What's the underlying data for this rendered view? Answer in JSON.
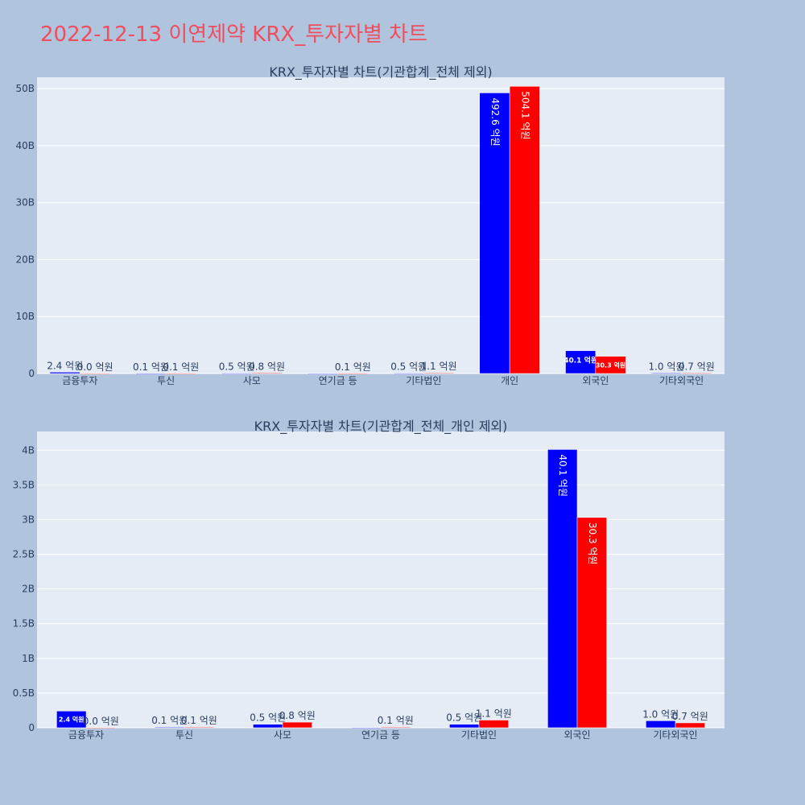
{
  "page": {
    "title": "2022-12-13 이연제약 KRX_투자자별 차트"
  },
  "colors": {
    "background": "#b0c4de",
    "plot_background": "#e5ecf6",
    "title": "#ef4e5f",
    "series_a": "#0000ff",
    "series_b": "#ff0000",
    "text": "#2a3f5f"
  },
  "chart_data": [
    {
      "type": "bar",
      "title": "KRX_투자자별 차트(기관합계_전체 제외)",
      "categories": [
        "금융투자",
        "투신",
        "사모",
        "연기금 등",
        "기타법인",
        "개인",
        "외국인",
        "기타외국인"
      ],
      "series": [
        {
          "color": "#0000ff",
          "values": [
            240000000,
            10000000,
            50000000,
            0,
            50000000,
            49260000000,
            4010000000,
            100000000
          ],
          "labels": [
            "2.4 억원",
            "0.1 억원",
            "0.5 억원",
            "",
            "0.5 억원",
            "492.6 억원",
            "40.1 억원",
            "1.0 억원"
          ]
        },
        {
          "color": "#ff0000",
          "values": [
            0,
            10000000,
            80000000,
            10000000,
            110000000,
            50410000000,
            3030000000,
            70000000
          ],
          "labels": [
            "0.0 억원",
            "0.1 억원",
            "0.8 억원",
            "0.1 억원",
            "1.1 억원",
            "504.1 억원",
            "30.3 억원",
            "0.7 억원"
          ]
        }
      ],
      "ylim": [
        0,
        52000000000
      ],
      "yticks": [
        0,
        10000000000,
        20000000000,
        30000000000,
        40000000000,
        50000000000
      ],
      "yticklabels": [
        "0",
        "10B",
        "20B",
        "30B",
        "40B",
        "50B"
      ],
      "grid": true,
      "legend": "none"
    },
    {
      "type": "bar",
      "title": "KRX_투자자별 차트(기관합계_전체_개인 제외)",
      "categories": [
        "금융투자",
        "투신",
        "사모",
        "연기금 등",
        "기타법인",
        "외국인",
        "기타외국인"
      ],
      "series": [
        {
          "color": "#0000ff",
          "values": [
            240000000,
            10000000,
            50000000,
            0,
            50000000,
            4010000000,
            100000000
          ],
          "labels": [
            "2.4 억원",
            "0.1 억원",
            "0.5 억원",
            "",
            "0.5 억원",
            "40.1 억원",
            "1.0 억원"
          ]
        },
        {
          "color": "#ff0000",
          "values": [
            0,
            10000000,
            80000000,
            10000000,
            110000000,
            3030000000,
            70000000
          ],
          "labels": [
            "0.0 억원",
            "0.1 억원",
            "0.8 억원",
            "0.1 억원",
            "1.1 억원",
            "30.3 억원",
            "0.7 억원"
          ]
        }
      ],
      "ylim": [
        0,
        4270000000
      ],
      "yticks": [
        0,
        500000000,
        1000000000,
        1500000000,
        2000000000,
        2500000000,
        3000000000,
        3500000000,
        4000000000
      ],
      "yticklabels": [
        "0",
        "0.5B",
        "1B",
        "1.5B",
        "2B",
        "2.5B",
        "3B",
        "3.5B",
        "4B"
      ],
      "grid": true,
      "legend": "none"
    }
  ]
}
